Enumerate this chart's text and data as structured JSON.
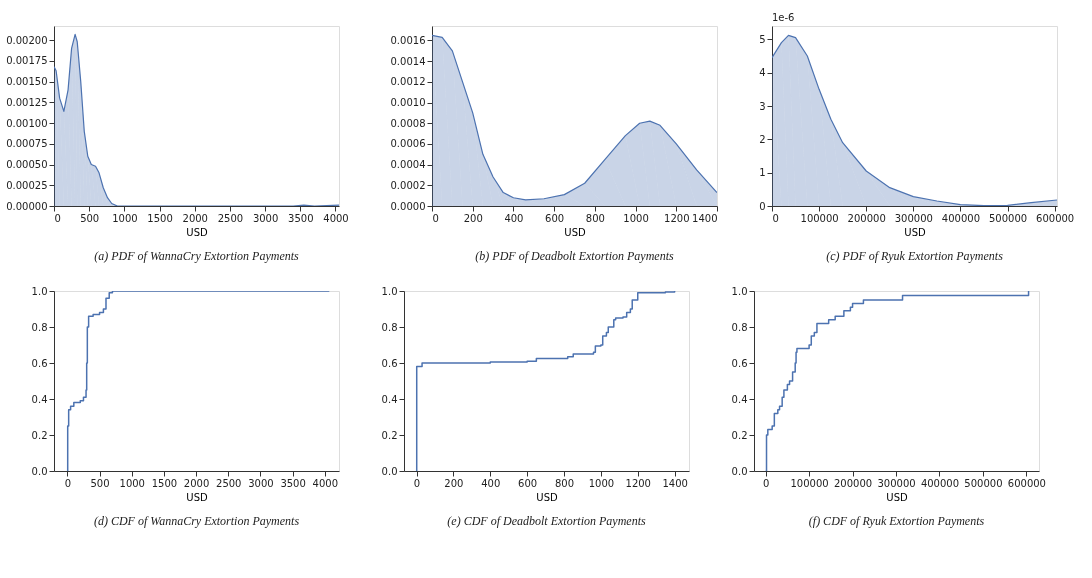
{
  "chart_data": [
    {
      "type": "area",
      "title": "(a) PDF of WannaCry Extortion Payments",
      "xlabel": "USD",
      "grid": false,
      "x": [
        0,
        30,
        80,
        140,
        200,
        250,
        300,
        330,
        380,
        430,
        480,
        530,
        590,
        640,
        700,
        760,
        820,
        900,
        1000,
        3400,
        3550,
        3700,
        4050
      ],
      "series": [
        {
          "color": "#4c72b0",
          "values": [
            0.00168,
            0.00163,
            0.0013,
            0.00114,
            0.0014,
            0.0019,
            0.00207,
            0.00198,
            0.0015,
            0.0009,
            0.0006,
            0.0005,
            0.00048,
            0.0004,
            0.00022,
            0.0001,
            3e-05,
            0,
            0,
            0,
            1e-05,
            0,
            1e-05
          ]
        }
      ],
      "xlim": [
        0,
        4050
      ],
      "ylim": [
        0,
        0.00217
      ],
      "xticks": [
        0,
        500,
        1000,
        1500,
        2000,
        2500,
        3000,
        3500,
        4000
      ],
      "yticks": [
        {
          "value": 0,
          "label": "0.00000"
        },
        {
          "value": 0.00025,
          "label": "0.00025"
        },
        {
          "value": 0.0005,
          "label": "0.00050"
        },
        {
          "value": 0.00075,
          "label": "0.00075"
        },
        {
          "value": 0.001,
          "label": "0.00100"
        },
        {
          "value": 0.00125,
          "label": "0.00125"
        },
        {
          "value": 0.0015,
          "label": "0.00150"
        },
        {
          "value": 0.00175,
          "label": "0.00175"
        },
        {
          "value": 0.002,
          "label": "0.00200"
        }
      ]
    },
    {
      "type": "area",
      "title": "(b) PDF of Deadbolt Extortion Payments",
      "xlabel": "USD",
      "grid": false,
      "x": [
        0,
        50,
        100,
        150,
        200,
        250,
        300,
        350,
        400,
        460,
        550,
        650,
        750,
        850,
        950,
        1020,
        1070,
        1120,
        1200,
        1300,
        1400
      ],
      "series": [
        {
          "color": "#4c72b0",
          "values": [
            0.00165,
            0.00163,
            0.0015,
            0.0012,
            0.0009,
            0.0005,
            0.00028,
            0.00013,
            8e-05,
            6e-05,
            7e-05,
            0.00011,
            0.00022,
            0.00045,
            0.00068,
            0.0008,
            0.00082,
            0.00078,
            0.0006,
            0.00035,
            0.00013
          ]
        }
      ],
      "xlim": [
        0,
        1400
      ],
      "ylim": [
        0,
        0.00174
      ],
      "xticks": [
        0,
        200,
        400,
        600,
        800,
        1000,
        1200,
        1400
      ],
      "yticks": [
        {
          "value": 0,
          "label": "0.0000"
        },
        {
          "value": 0.0002,
          "label": "0.0002"
        },
        {
          "value": 0.0004,
          "label": "0.0004"
        },
        {
          "value": 0.0006,
          "label": "0.0006"
        },
        {
          "value": 0.0008,
          "label": "0.0008"
        },
        {
          "value": 0.001,
          "label": "0.0010"
        },
        {
          "value": 0.0012,
          "label": "0.0012"
        },
        {
          "value": 0.0014,
          "label": "0.0014"
        },
        {
          "value": 0.0016,
          "label": "0.0016"
        }
      ]
    },
    {
      "type": "area",
      "title": "(c) PDF of Ryuk Extortion Payments",
      "xlabel": "USD",
      "grid": false,
      "annotations": [
        "1e-6"
      ],
      "x": [
        0,
        20000,
        35000,
        50000,
        75000,
        100000,
        125000,
        150000,
        200000,
        250000,
        300000,
        350000,
        400000,
        450000,
        500000,
        550000,
        605000
      ],
      "series": [
        {
          "color": "#4c72b0",
          "values": [
            4.45,
            4.9,
            5.12,
            5.05,
            4.5,
            3.5,
            2.6,
            1.9,
            1.05,
            0.55,
            0.28,
            0.15,
            0.04,
            0.01,
            0.02,
            0.1,
            0.18
          ]
        }
      ],
      "xlim": [
        0,
        605000
      ],
      "ylim": [
        0,
        5.4
      ],
      "xticks": [
        0,
        100000,
        200000,
        300000,
        400000,
        500000,
        600000
      ],
      "yticks": [
        0,
        1,
        2,
        3,
        4,
        5
      ]
    },
    {
      "type": "step",
      "title": "(d) CDF of WannaCry Extortion Payments",
      "xlabel": "USD",
      "grid": false,
      "x": [
        0,
        5,
        20,
        50,
        100,
        200,
        250,
        290,
        300,
        310,
        330,
        400,
        500,
        560,
        600,
        650,
        700,
        4070
      ],
      "series": [
        {
          "color": "#4c72b0",
          "values": [
            0,
            0.25,
            0.34,
            0.36,
            0.38,
            0.39,
            0.41,
            0.45,
            0.6,
            0.8,
            0.86,
            0.87,
            0.88,
            0.9,
            0.96,
            0.99,
            1.0,
            1.0
          ]
        }
      ],
      "xlim": [
        -208,
        4221
      ],
      "ylim": [
        0,
        1
      ],
      "xticks": [
        0,
        500,
        1000,
        1500,
        2000,
        2500,
        3000,
        3500,
        4000
      ],
      "yticks": [
        {
          "value": 0,
          "label": "0.0"
        },
        {
          "value": 0.2,
          "label": "0.2"
        },
        {
          "value": 0.4,
          "label": "0.4"
        },
        {
          "value": 0.6,
          "label": "0.6"
        },
        {
          "value": 0.8,
          "label": "0.8"
        },
        {
          "value": 1,
          "label": "1.0"
        }
      ]
    },
    {
      "type": "step",
      "title": "(e) CDF of Deadbolt Extortion Payments",
      "xlabel": "USD",
      "grid": false,
      "x": [
        0,
        1,
        30,
        400,
        600,
        650,
        820,
        850,
        960,
        970,
        1000,
        1010,
        1030,
        1040,
        1070,
        1080,
        1120,
        1140,
        1160,
        1170,
        1200,
        1350,
        1400
      ],
      "series": [
        {
          "color": "#4c72b0",
          "values": [
            0,
            0.58,
            0.6,
            0.605,
            0.61,
            0.625,
            0.635,
            0.65,
            0.66,
            0.695,
            0.7,
            0.75,
            0.77,
            0.8,
            0.84,
            0.85,
            0.855,
            0.88,
            0.9,
            0.95,
            0.99,
            0.995,
            1.0
          ]
        }
      ],
      "xlim": [
        -68,
        1478
      ],
      "ylim": [
        0,
        1
      ],
      "xticks": [
        0,
        200,
        400,
        600,
        800,
        1000,
        1200,
        1400
      ],
      "yticks": [
        {
          "value": 0,
          "label": "0.0"
        },
        {
          "value": 0.2,
          "label": "0.2"
        },
        {
          "value": 0.4,
          "label": "0.4"
        },
        {
          "value": 0.6,
          "label": "0.6"
        },
        {
          "value": 0.8,
          "label": "0.8"
        },
        {
          "value": 1,
          "label": "1.0"
        }
      ]
    },
    {
      "type": "step",
      "title": "(f) CDF of Ryuk Extortion Payments",
      "xlabel": "USD",
      "grid": false,
      "x": [
        0,
        2000,
        5000,
        15000,
        20000,
        28000,
        32000,
        38000,
        42000,
        50000,
        55000,
        62000,
        68000,
        70000,
        72000,
        100000,
        105000,
        112000,
        118000,
        145000,
        160000,
        180000,
        195000,
        200000,
        225000,
        315000,
        605000
      ],
      "series": [
        {
          "color": "#4c72b0",
          "values": [
            0,
            0.2,
            0.23,
            0.25,
            0.32,
            0.34,
            0.36,
            0.41,
            0.45,
            0.48,
            0.5,
            0.55,
            0.6,
            0.66,
            0.68,
            0.7,
            0.75,
            0.77,
            0.82,
            0.84,
            0.86,
            0.89,
            0.91,
            0.93,
            0.95,
            0.975,
            1.0
          ]
        }
      ],
      "xlim": [
        -26800,
        629000
      ],
      "ylim": [
        0,
        1
      ],
      "xticks": [
        0,
        100000,
        200000,
        300000,
        400000,
        500000,
        600000
      ],
      "yticks": [
        {
          "value": 0,
          "label": "0.0"
        },
        {
          "value": 0.2,
          "label": "0.2"
        },
        {
          "value": 0.4,
          "label": "0.4"
        },
        {
          "value": 0.6,
          "label": "0.6"
        },
        {
          "value": 0.8,
          "label": "0.8"
        },
        {
          "value": 1,
          "label": "1.0"
        }
      ]
    }
  ]
}
